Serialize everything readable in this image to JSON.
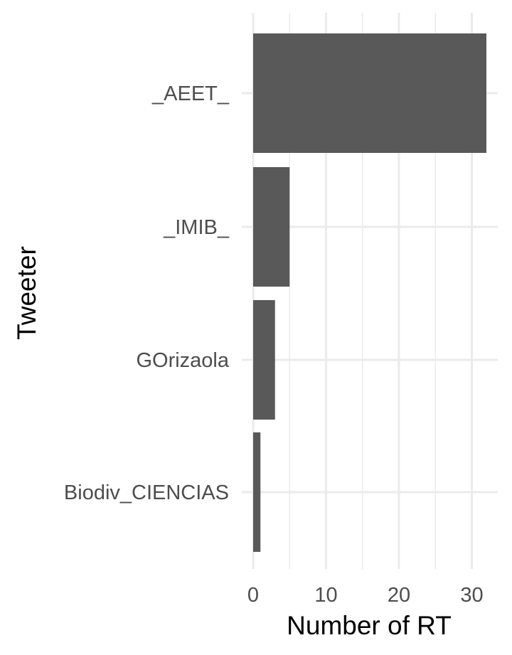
{
  "chart_data": {
    "type": "bar",
    "orientation": "horizontal",
    "categories": [
      "_AEET_",
      "_IMIB_",
      "GOrizaola",
      "Biodiv_CIENCIAS"
    ],
    "values": [
      32,
      5,
      3,
      1
    ],
    "xlabel": "Number of RT",
    "ylabel": "Tweeter",
    "xlim": [
      0,
      33.6
    ],
    "x_ticks": [
      0,
      10,
      20,
      30
    ],
    "x_tick_labels": [
      "0",
      "10",
      "20",
      "30"
    ],
    "grid": true,
    "bar_color": "#595959",
    "grid_color": "#ebebeb"
  }
}
